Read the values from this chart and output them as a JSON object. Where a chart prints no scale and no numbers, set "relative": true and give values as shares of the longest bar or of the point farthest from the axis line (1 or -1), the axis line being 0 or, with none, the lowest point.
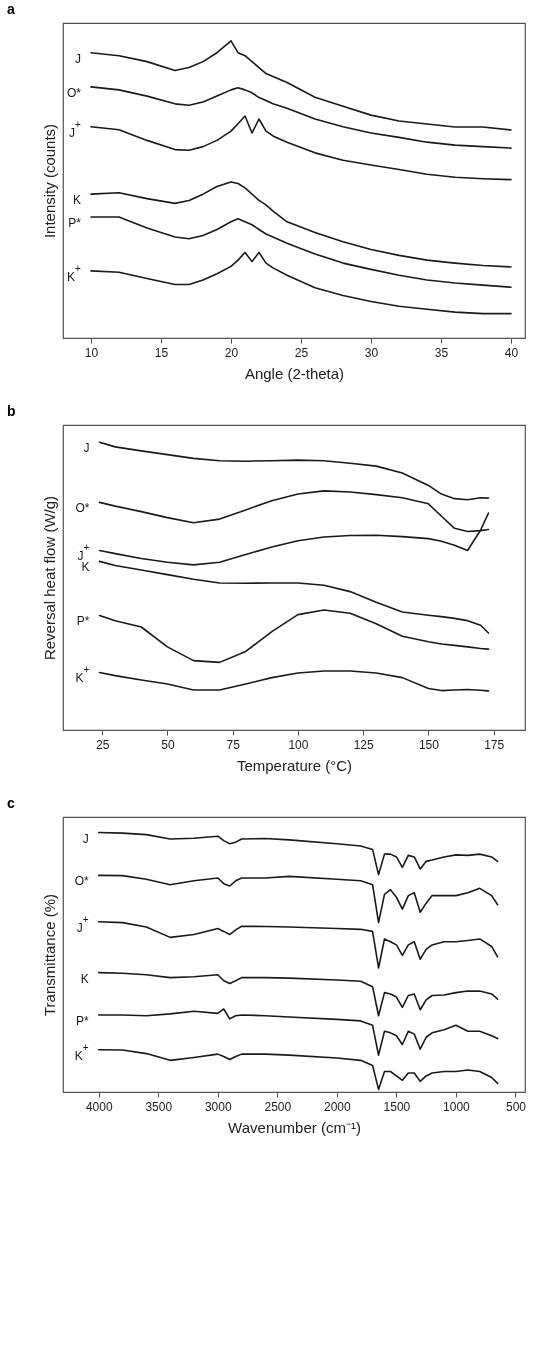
{
  "chart_data": [
    {
      "type": "line",
      "title": "a",
      "xlabel": "Angle (2-theta)",
      "ylabel": "Intensity (counts)",
      "relative": true,
      "tick_labels": "x",
      "xlim": [
        8,
        41
      ],
      "xticks": [
        10,
        15,
        20,
        25,
        30,
        35,
        40
      ],
      "x": [
        10,
        12,
        14,
        16,
        17,
        18,
        19,
        20,
        20.5,
        21,
        21.5,
        22,
        22.5,
        23,
        24,
        26,
        28,
        30,
        32,
        34,
        36,
        38,
        40
      ],
      "series": [
        {
          "name": "J",
          "color": "#1a1a1a",
          "values": [
            0.96,
            0.95,
            0.93,
            0.9,
            0.91,
            0.93,
            0.96,
            1.0,
            0.96,
            0.95,
            0.93,
            0.91,
            0.89,
            0.88,
            0.86,
            0.81,
            0.78,
            0.75,
            0.73,
            0.72,
            0.71,
            0.71,
            0.7
          ]
        },
        {
          "name": "O*",
          "color": "#1a1a1a",
          "values": [
            0.845,
            0.835,
            0.814,
            0.788,
            0.783,
            0.794,
            0.814,
            0.835,
            0.842,
            0.835,
            0.825,
            0.809,
            0.799,
            0.788,
            0.773,
            0.737,
            0.711,
            0.69,
            0.675,
            0.659,
            0.649,
            0.644,
            0.639
          ]
        },
        {
          "name": "J$^{+}$",
          "color": "#1a1a1a",
          "values": [
            0.711,
            0.701,
            0.665,
            0.634,
            0.632,
            0.644,
            0.665,
            0.696,
            0.721,
            0.747,
            0.69,
            0.737,
            0.696,
            0.68,
            0.659,
            0.623,
            0.598,
            0.582,
            0.567,
            0.551,
            0.541,
            0.536,
            0.533
          ]
        },
        {
          "name": "K",
          "color": "#1a1a1a",
          "values": [
            0.484,
            0.489,
            0.469,
            0.453,
            0.463,
            0.484,
            0.51,
            0.525,
            0.52,
            0.505,
            0.484,
            0.463,
            0.448,
            0.427,
            0.391,
            0.355,
            0.324,
            0.298,
            0.278,
            0.262,
            0.252,
            0.244,
            0.239
          ]
        },
        {
          "name": "P*",
          "color": "#1a1a1a",
          "values": [
            0.407,
            0.407,
            0.37,
            0.34,
            0.334,
            0.345,
            0.365,
            0.391,
            0.401,
            0.391,
            0.381,
            0.365,
            0.35,
            0.34,
            0.319,
            0.283,
            0.252,
            0.231,
            0.211,
            0.195,
            0.185,
            0.178,
            0.171
          ]
        },
        {
          "name": "K$^{+}$",
          "color": "#1a1a1a",
          "values": [
            0.226,
            0.221,
            0.2,
            0.18,
            0.18,
            0.195,
            0.216,
            0.241,
            0.262,
            0.288,
            0.257,
            0.288,
            0.252,
            0.236,
            0.211,
            0.169,
            0.143,
            0.123,
            0.107,
            0.097,
            0.087,
            0.082,
            0.082
          ]
        }
      ]
    },
    {
      "type": "line",
      "title": "b",
      "xlabel": "Temperature (°C)",
      "ylabel": "Reversal heat flow (W/g)",
      "relative": true,
      "tick_labels": "x",
      "xlim": [
        10,
        187
      ],
      "xticks": [
        25,
        50,
        75,
        100,
        125,
        150,
        175
      ],
      "x": [
        24,
        30,
        40,
        50,
        60,
        70,
        80,
        90,
        100,
        110,
        120,
        130,
        140,
        150,
        155,
        160,
        165,
        170,
        173
      ],
      "series": [
        {
          "name": "J",
          "color": "#1a1a1a",
          "values": [
            1.0,
            0.984,
            0.97,
            0.957,
            0.944,
            0.936,
            0.934,
            0.936,
            0.938,
            0.936,
            0.927,
            0.917,
            0.893,
            0.85,
            0.82,
            0.804,
            0.8,
            0.807,
            0.806
          ]
        },
        {
          "name": "O*",
          "color": "#1a1a1a",
          "values": [
            0.791,
            0.778,
            0.759,
            0.738,
            0.72,
            0.733,
            0.765,
            0.797,
            0.82,
            0.831,
            0.827,
            0.818,
            0.807,
            0.786,
            0.743,
            0.701,
            0.69,
            0.693,
            0.697
          ]
        },
        {
          "name": "J$^{+}$",
          "color": "#1a1a1a",
          "values": [
            0.624,
            0.613,
            0.596,
            0.583,
            0.574,
            0.583,
            0.61,
            0.636,
            0.658,
            0.671,
            0.676,
            0.677,
            0.672,
            0.665,
            0.656,
            0.642,
            0.624,
            0.695,
            0.754
          ]
        },
        {
          "name": "K",
          "color": "#1a1a1a",
          "values": [
            0.586,
            0.572,
            0.556,
            0.54,
            0.524,
            0.511,
            0.51,
            0.511,
            0.511,
            0.503,
            0.481,
            0.444,
            0.41,
            0.399,
            0.394,
            0.388,
            0.38,
            0.364,
            0.337
          ]
        },
        {
          "name": "P*",
          "color": "#1a1a1a",
          "values": [
            0.398,
            0.38,
            0.358,
            0.289,
            0.241,
            0.235,
            0.273,
            0.342,
            0.401,
            0.417,
            0.406,
            0.369,
            0.326,
            0.307,
            0.299,
            0.294,
            0.289,
            0.283,
            0.281
          ]
        },
        {
          "name": "K$^{+}$",
          "color": "#1a1a1a",
          "values": [
            0.2,
            0.189,
            0.174,
            0.16,
            0.139,
            0.139,
            0.16,
            0.182,
            0.198,
            0.205,
            0.205,
            0.198,
            0.182,
            0.144,
            0.137,
            0.139,
            0.141,
            0.138,
            0.136
          ]
        }
      ]
    },
    {
      "type": "line",
      "title": "c",
      "xlabel": "Wavenumber (cm⁻¹)",
      "ylabel": "Transmittance (%)",
      "relative": true,
      "tick_labels": "x",
      "xlim": [
        4300,
        420
      ],
      "xticks": [
        4000,
        3500,
        3000,
        2500,
        2000,
        1500,
        1000,
        500
      ],
      "x": [
        4000,
        3800,
        3600,
        3400,
        3200,
        3000,
        2950,
        2900,
        2850,
        2800,
        2600,
        2400,
        2000,
        1800,
        1700,
        1650,
        1600,
        1550,
        1500,
        1450,
        1400,
        1350,
        1300,
        1250,
        1200,
        1100,
        1000,
        900,
        800,
        700,
        650
      ],
      "series": [
        {
          "name": "J",
          "color": "#1a1a1a",
          "values": [
            1.0,
            0.998,
            0.992,
            0.975,
            0.978,
            0.986,
            0.969,
            0.957,
            0.963,
            0.975,
            0.977,
            0.972,
            0.957,
            0.948,
            0.935,
            0.838,
            0.917,
            0.917,
            0.906,
            0.866,
            0.912,
            0.906,
            0.86,
            0.889,
            0.894,
            0.906,
            0.914,
            0.912,
            0.917,
            0.906,
            0.889
          ]
        },
        {
          "name": "O*",
          "color": "#1a1a1a",
          "values": [
            0.835,
            0.834,
            0.82,
            0.799,
            0.814,
            0.825,
            0.803,
            0.794,
            0.814,
            0.825,
            0.825,
            0.831,
            0.82,
            0.814,
            0.799,
            0.653,
            0.762,
            0.78,
            0.751,
            0.705,
            0.757,
            0.768,
            0.693,
            0.728,
            0.757,
            0.757,
            0.757,
            0.768,
            0.785,
            0.757,
            0.722
          ]
        },
        {
          "name": "J$^{+}$",
          "color": "#1a1a1a",
          "values": [
            0.656,
            0.653,
            0.636,
            0.596,
            0.607,
            0.63,
            0.619,
            0.607,
            0.625,
            0.639,
            0.638,
            0.636,
            0.63,
            0.627,
            0.619,
            0.478,
            0.59,
            0.579,
            0.567,
            0.527,
            0.567,
            0.579,
            0.512,
            0.55,
            0.567,
            0.579,
            0.579,
            0.584,
            0.59,
            0.561,
            0.521
          ]
        },
        {
          "name": "K",
          "color": "#1a1a1a",
          "values": [
            0.46,
            0.458,
            0.452,
            0.441,
            0.444,
            0.452,
            0.429,
            0.418,
            0.429,
            0.441,
            0.441,
            0.439,
            0.432,
            0.427,
            0.406,
            0.294,
            0.383,
            0.378,
            0.366,
            0.326,
            0.372,
            0.378,
            0.317,
            0.355,
            0.372,
            0.374,
            0.383,
            0.389,
            0.389,
            0.378,
            0.358
          ]
        },
        {
          "name": "P*",
          "color": "#1a1a1a",
          "values": [
            0.297,
            0.297,
            0.294,
            0.301,
            0.311,
            0.303,
            0.32,
            0.282,
            0.294,
            0.297,
            0.294,
            0.289,
            0.28,
            0.274,
            0.257,
            0.142,
            0.234,
            0.228,
            0.217,
            0.183,
            0.234,
            0.223,
            0.165,
            0.211,
            0.228,
            0.24,
            0.257,
            0.234,
            0.234,
            0.217,
            0.206
          ]
        },
        {
          "name": "K$^{+}$",
          "color": "#1a1a1a",
          "values": [
            0.163,
            0.162,
            0.148,
            0.122,
            0.133,
            0.146,
            0.137,
            0.125,
            0.137,
            0.146,
            0.146,
            0.142,
            0.131,
            0.122,
            0.102,
            0.01,
            0.079,
            0.079,
            0.062,
            0.045,
            0.073,
            0.073,
            0.041,
            0.062,
            0.073,
            0.079,
            0.079,
            0.085,
            0.079,
            0.056,
            0.033
          ]
        }
      ]
    }
  ]
}
